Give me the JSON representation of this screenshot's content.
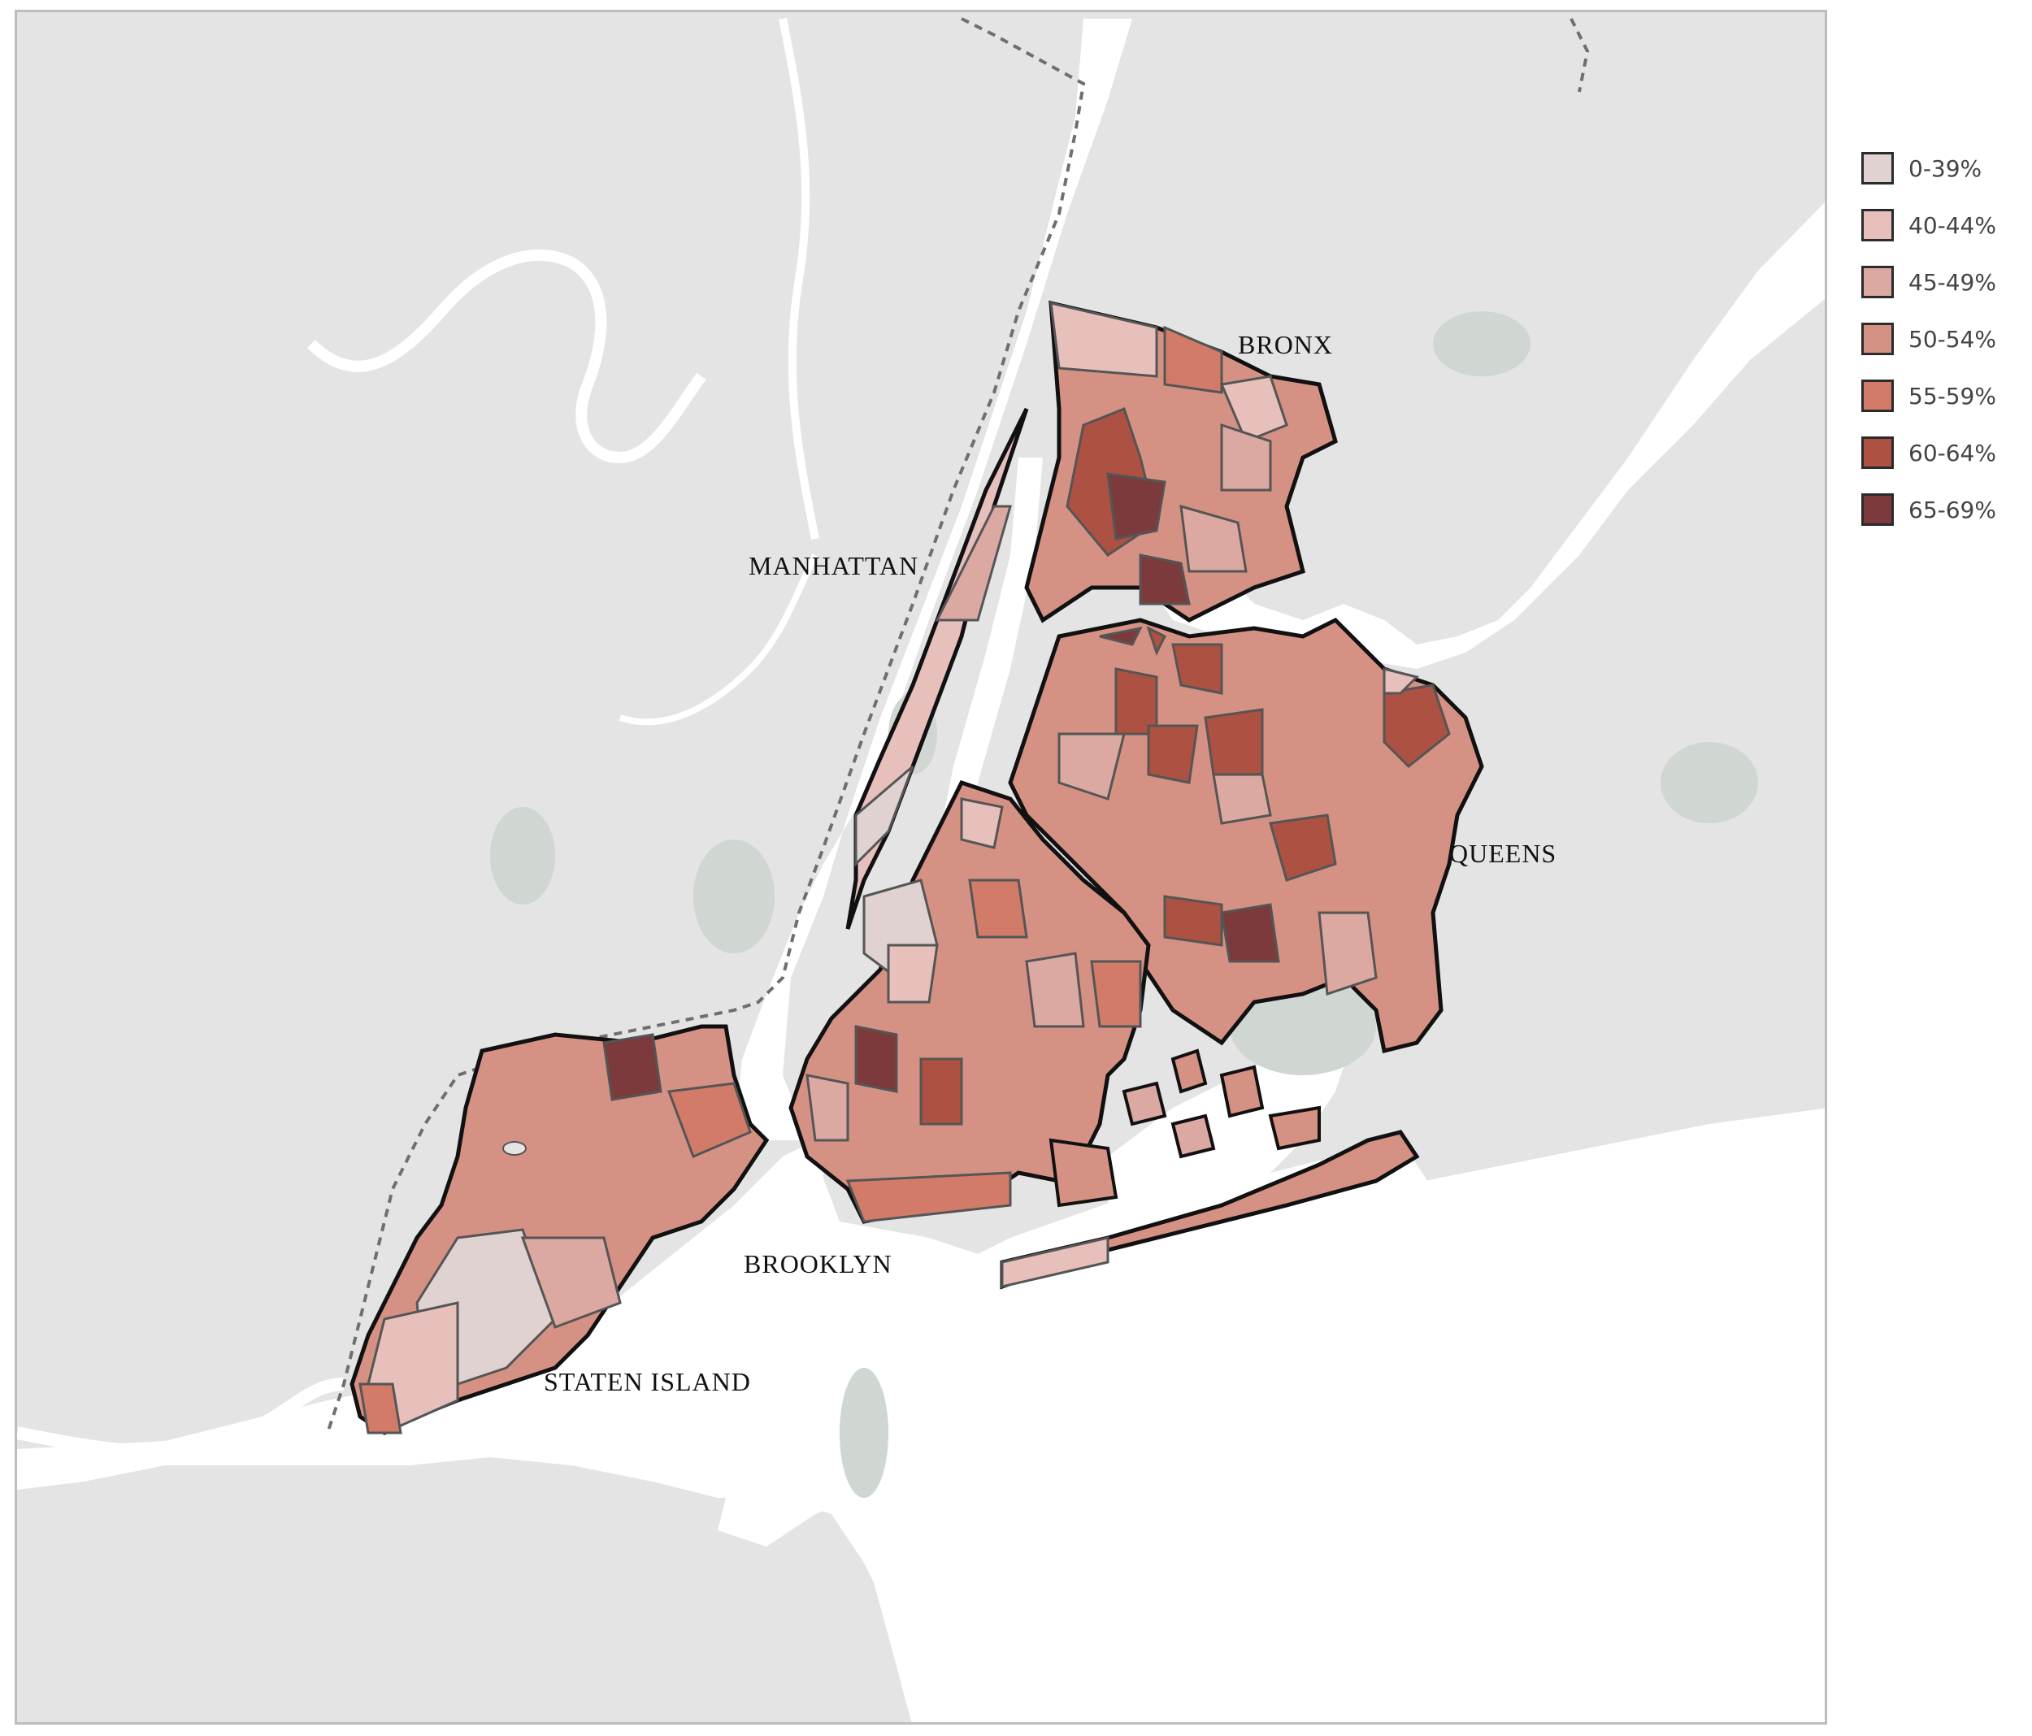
{
  "map": {
    "borough_labels": {
      "manhattan": "MANHATTAN",
      "bronx": "BRONX",
      "queens": "QUEENS",
      "brooklyn": "BROOKLYN",
      "staten_island": "STATEN ISLAND"
    },
    "colors": {
      "land": "#e3e4e3",
      "water": "#ffffff",
      "park": "#d0d6d1",
      "outline": "#111111",
      "inner_border": "#555555"
    }
  },
  "legend": {
    "items": [
      {
        "label": "0-39%",
        "color": "#dfd2d1"
      },
      {
        "label": "40-44%",
        "color": "#e7c0bc"
      },
      {
        "label": "45-49%",
        "color": "#dca9a2"
      },
      {
        "label": "50-54%",
        "color": "#d59284"
      },
      {
        "label": "55-59%",
        "color": "#d17b68"
      },
      {
        "label": "60-64%",
        "color": "#ad5142"
      },
      {
        "label": "65-69%",
        "color": "#7c3a3c"
      }
    ]
  }
}
